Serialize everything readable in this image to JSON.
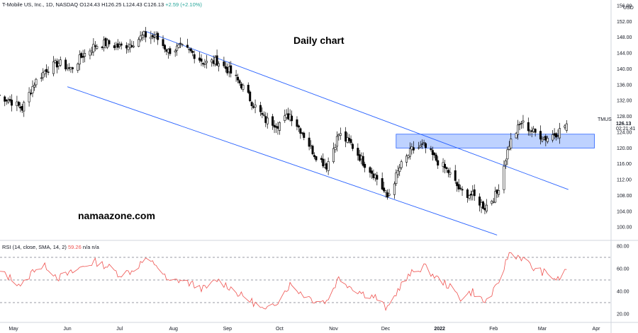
{
  "header": {
    "symbol_text": "T-Mobile US, Inc., 1D, NASDAQ",
    "open": "O124.43",
    "high": "H126.25",
    "low": "L124.43",
    "close": "C126.13",
    "change": "+2.59 (+2.10%)"
  },
  "overlays": {
    "title": "Daily chart",
    "site": "namaazone.com"
  },
  "rsi_header": {
    "label": "RSI (14, close, SMA, 14, 2)",
    "value": "59.26",
    "na1": "n/a",
    "na2": "n/a"
  },
  "price_tag": {
    "ticker": "TMUS",
    "price": "126.13",
    "countdown": "02:21:41"
  },
  "colors": {
    "up": "#26a69a",
    "down": "#ef5350",
    "candle": "#000000",
    "trendline": "#2962ff",
    "zone_fill": "#a8c3ff",
    "zone_border": "#2962ff",
    "rsi_line": "#ef5350",
    "level_line": "#787b86"
  },
  "chart_data": [
    {
      "type": "candlestick",
      "title": "",
      "y_axis_unit": "USD",
      "ylim": [
        97,
        156
      ],
      "y_ticks": [
        "100.00",
        "104.00",
        "108.00",
        "112.00",
        "116.00",
        "120.00",
        "124.00",
        "128.00",
        "132.00",
        "136.00",
        "140.00",
        "144.00",
        "148.00",
        "152.00",
        "156.00"
      ],
      "x_ticks": [
        "May",
        "Jun",
        "Jul",
        "Aug",
        "Sep",
        "Oct",
        "Nov",
        "Dec",
        "2022",
        "Feb",
        "Mar",
        "Apr"
      ],
      "close_path": [
        {
          "date": "2021-04-22",
          "close": 133.5
        },
        {
          "date": "2021-04-29",
          "close": 132.0
        },
        {
          "date": "2021-05-06",
          "close": 130.0
        },
        {
          "date": "2021-05-13",
          "close": 136.5
        },
        {
          "date": "2021-05-20",
          "close": 140.0
        },
        {
          "date": "2021-05-27",
          "close": 141.5
        },
        {
          "date": "2021-06-03",
          "close": 140.0
        },
        {
          "date": "2021-06-10",
          "close": 143.5
        },
        {
          "date": "2021-06-17",
          "close": 146.0
        },
        {
          "date": "2021-06-24",
          "close": 146.5
        },
        {
          "date": "2021-07-01",
          "close": 145.5
        },
        {
          "date": "2021-07-08",
          "close": 146.5
        },
        {
          "date": "2021-07-15",
          "close": 148.5
        },
        {
          "date": "2021-07-22",
          "close": 148.0
        },
        {
          "date": "2021-07-29",
          "close": 144.5
        },
        {
          "date": "2021-08-05",
          "close": 145.5
        },
        {
          "date": "2021-08-12",
          "close": 144.0
        },
        {
          "date": "2021-08-19",
          "close": 141.5
        },
        {
          "date": "2021-08-26",
          "close": 142.0
        },
        {
          "date": "2021-09-02",
          "close": 139.5
        },
        {
          "date": "2021-09-09",
          "close": 136.0
        },
        {
          "date": "2021-09-16",
          "close": 131.0
        },
        {
          "date": "2021-09-23",
          "close": 127.0
        },
        {
          "date": "2021-09-30",
          "close": 126.0
        },
        {
          "date": "2021-10-07",
          "close": 128.5
        },
        {
          "date": "2021-10-14",
          "close": 124.0
        },
        {
          "date": "2021-10-21",
          "close": 118.5
        },
        {
          "date": "2021-10-28",
          "close": 115.5
        },
        {
          "date": "2021-11-04",
          "close": 123.5
        },
        {
          "date": "2021-11-11",
          "close": 121.0
        },
        {
          "date": "2021-11-18",
          "close": 116.5
        },
        {
          "date": "2021-11-25",
          "close": 113.0
        },
        {
          "date": "2021-12-02",
          "close": 107.5
        },
        {
          "date": "2021-12-09",
          "close": 115.0
        },
        {
          "date": "2021-12-16",
          "close": 119.5
        },
        {
          "date": "2021-12-23",
          "close": 120.5
        },
        {
          "date": "2021-12-30",
          "close": 117.0
        },
        {
          "date": "2022-01-06",
          "close": 114.0
        },
        {
          "date": "2022-01-13",
          "close": 109.0
        },
        {
          "date": "2022-01-20",
          "close": 108.0
        },
        {
          "date": "2022-01-27",
          "close": 105.0
        },
        {
          "date": "2022-02-03",
          "close": 108.5
        },
        {
          "date": "2022-02-10",
          "close": 121.0
        },
        {
          "date": "2022-02-17",
          "close": 126.5
        },
        {
          "date": "2022-02-24",
          "close": 124.0
        },
        {
          "date": "2022-03-03",
          "close": 122.5
        },
        {
          "date": "2022-03-10",
          "close": 124.0
        },
        {
          "date": "2022-03-15",
          "close": 126.13
        }
      ],
      "trendlines": [
        {
          "from": {
            "date": "2021-07-16",
            "price": 149.5
          },
          "to": {
            "date": "2022-03-16",
            "price": 109.5
          }
        },
        {
          "from": {
            "date": "2021-06-01",
            "price": 135.5
          },
          "to": {
            "date": "2022-02-03",
            "price": 98.0
          }
        }
      ],
      "zone": {
        "from_date": "2021-12-07",
        "to_date": "2022-03-31",
        "low": 120.0,
        "high": 123.5
      }
    },
    {
      "type": "line",
      "name": "RSI",
      "ylim": [
        15,
        85
      ],
      "y_ticks": [
        "20.00",
        "40.00",
        "60.00",
        "80.00"
      ],
      "levels": [
        70,
        50,
        30
      ],
      "rsi_path": [
        {
          "date": "2021-04-22",
          "value": 58
        },
        {
          "date": "2021-04-29",
          "value": 52
        },
        {
          "date": "2021-05-06",
          "value": 45
        },
        {
          "date": "2021-05-13",
          "value": 60
        },
        {
          "date": "2021-05-20",
          "value": 62
        },
        {
          "date": "2021-05-27",
          "value": 52
        },
        {
          "date": "2021-06-03",
          "value": 56
        },
        {
          "date": "2021-06-10",
          "value": 62
        },
        {
          "date": "2021-06-17",
          "value": 66
        },
        {
          "date": "2021-06-24",
          "value": 62
        },
        {
          "date": "2021-07-01",
          "value": 55
        },
        {
          "date": "2021-07-08",
          "value": 58
        },
        {
          "date": "2021-07-15",
          "value": 67
        },
        {
          "date": "2021-07-22",
          "value": 64
        },
        {
          "date": "2021-07-29",
          "value": 48
        },
        {
          "date": "2021-08-05",
          "value": 50
        },
        {
          "date": "2021-08-12",
          "value": 46
        },
        {
          "date": "2021-08-19",
          "value": 42
        },
        {
          "date": "2021-08-26",
          "value": 50
        },
        {
          "date": "2021-09-02",
          "value": 44
        },
        {
          "date": "2021-09-09",
          "value": 36
        },
        {
          "date": "2021-09-16",
          "value": 30
        },
        {
          "date": "2021-09-23",
          "value": 22
        },
        {
          "date": "2021-09-30",
          "value": 32
        },
        {
          "date": "2021-10-07",
          "value": 46
        },
        {
          "date": "2021-10-14",
          "value": 38
        },
        {
          "date": "2021-10-21",
          "value": 32
        },
        {
          "date": "2021-10-28",
          "value": 31
        },
        {
          "date": "2021-11-04",
          "value": 52
        },
        {
          "date": "2021-11-11",
          "value": 44
        },
        {
          "date": "2021-11-18",
          "value": 38
        },
        {
          "date": "2021-11-25",
          "value": 35
        },
        {
          "date": "2021-12-02",
          "value": 24
        },
        {
          "date": "2021-12-09",
          "value": 44
        },
        {
          "date": "2021-12-16",
          "value": 56
        },
        {
          "date": "2021-12-23",
          "value": 62
        },
        {
          "date": "2021-12-30",
          "value": 52
        },
        {
          "date": "2022-01-06",
          "value": 45
        },
        {
          "date": "2022-01-13",
          "value": 34
        },
        {
          "date": "2022-01-20",
          "value": 40
        },
        {
          "date": "2022-01-27",
          "value": 30
        },
        {
          "date": "2022-02-03",
          "value": 44
        },
        {
          "date": "2022-02-10",
          "value": 74
        },
        {
          "date": "2022-02-17",
          "value": 70
        },
        {
          "date": "2022-02-24",
          "value": 60
        },
        {
          "date": "2022-03-03",
          "value": 56
        },
        {
          "date": "2022-03-10",
          "value": 50
        },
        {
          "date": "2022-03-15",
          "value": 59.26
        }
      ]
    }
  ]
}
